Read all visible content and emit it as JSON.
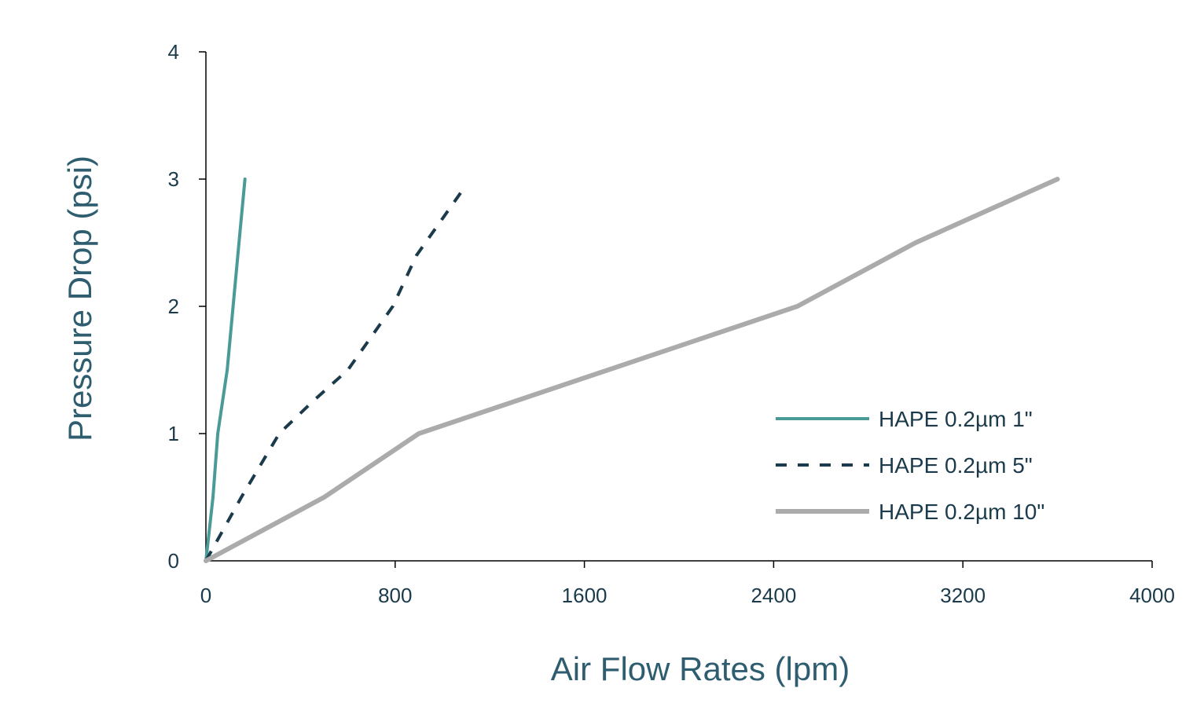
{
  "chart_data": {
    "type": "line",
    "xlabel": "Air Flow Rates (lpm)",
    "ylabel": "Pressure Drop (psi)",
    "xlim": [
      0,
      4000
    ],
    "ylim": [
      0,
      4
    ],
    "x_ticks": [
      "0",
      "800",
      "1600",
      "2400",
      "3200",
      "4000"
    ],
    "y_ticks": [
      "0",
      "1",
      "2",
      "3",
      "4"
    ],
    "grid": false,
    "legend_position": "right",
    "series": [
      {
        "name": "HAPE 0.2µm 1\"",
        "color": "#4a9a97",
        "style": "solid",
        "x": [
          0,
          30,
          50,
          90,
          140,
          165
        ],
        "y": [
          0,
          0.5,
          1,
          1.5,
          2.5,
          3
        ]
      },
      {
        "name": "HAPE 0.2µm 5\"",
        "color": "#1b3a4b",
        "style": "dashed",
        "x": [
          0,
          150,
          310,
          450,
          600,
          790,
          890,
          1080
        ],
        "y": [
          0,
          0.5,
          1,
          1.25,
          1.5,
          2,
          2.4,
          2.9
        ]
      },
      {
        "name": "HAPE 0.2µm 10\"",
        "color": "#ababab",
        "style": "solid",
        "x": [
          0,
          500,
          900,
          2500,
          3000,
          3600
        ],
        "y": [
          0,
          0.5,
          1,
          2,
          2.5,
          3
        ]
      }
    ]
  }
}
